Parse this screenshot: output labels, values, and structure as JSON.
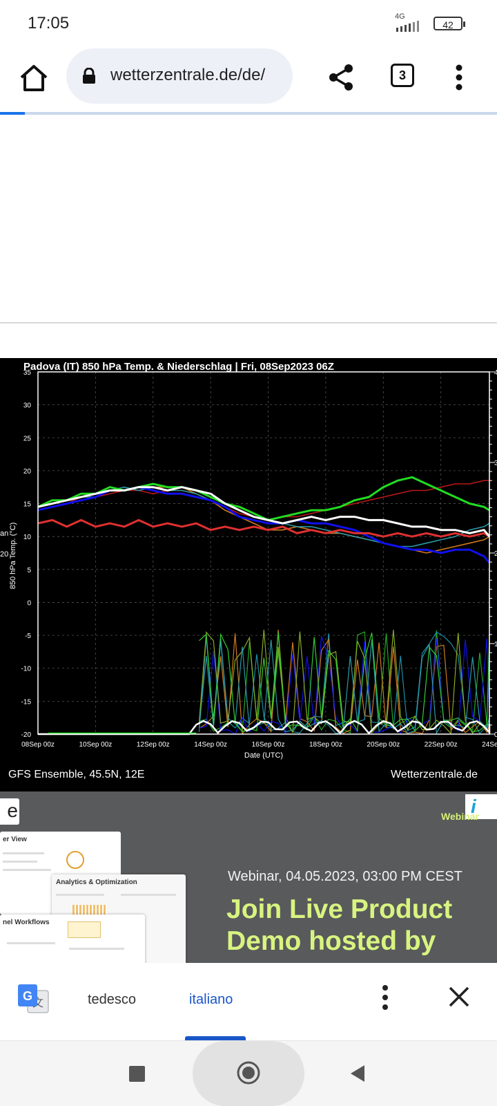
{
  "status_bar": {
    "time": "17:05",
    "network": "4G",
    "battery": "42"
  },
  "browser": {
    "url": "wetterzentrale.de/de/",
    "tab_count": "3",
    "load_progress": 0.05
  },
  "chart_panel": {
    "title": "Padova  (IT)  850 hPa Temp. & Niederschlag | Fri, 08Sep2023 06Z",
    "footer_left": "GFS Ensemble, 45.5N, 12E",
    "footer_right": "Wetterzentrale.de",
    "left_edge_fragments": [
      "an",
      "20"
    ],
    "right_axis_fragments": [
      "4",
      "3",
      "2",
      "1",
      "0"
    ]
  },
  "chart_data": {
    "type": "line",
    "title": "Padova  (IT)  850 hPa Temp. & Niederschlag | Fri, 08Sep2023 06Z",
    "xlabel": "Date (UTC)",
    "ylabel": "850 hPa Temp. (°C)",
    "ylim": [
      -20,
      35
    ],
    "yticks": [
      35,
      30,
      25,
      20,
      15,
      10,
      5,
      0,
      -5,
      -10,
      -15,
      -20
    ],
    "xticks": [
      "08Sep 00z",
      "10Sep 00z",
      "12Sep 00z",
      "14Sep 00z",
      "16Sep 00z",
      "18Sep 00z",
      "20Sep 00z",
      "22Sep 00z",
      "24Sep 00z"
    ],
    "x_days": [
      0,
      0.5,
      1,
      1.5,
      2,
      2.5,
      3,
      3.5,
      4,
      4.5,
      5,
      5.5,
      6,
      6.5,
      7,
      7.5,
      8,
      8.5,
      9,
      9.5,
      10,
      10.5,
      11,
      11.5,
      12,
      12.5,
      13,
      13.5,
      14,
      14.5,
      15,
      15.5,
      16
    ],
    "grid": true,
    "series": [
      {
        "color": "#e03030",
        "values": [
          12,
          12.5,
          11.5,
          12.5,
          11.5,
          12,
          11.5,
          12.5,
          11.5,
          12,
          11.5,
          12,
          11,
          11.5,
          11,
          11.5,
          11,
          11.5,
          10.5,
          11,
          10.5,
          11,
          10.5,
          10.5,
          10,
          10.5,
          10,
          10.5,
          10,
          10.5,
          10,
          10.5,
          10
        ]
      },
      {
        "color": "#ffffff",
        "values": [
          14.5,
          15,
          15.5,
          16,
          16.5,
          17,
          17,
          17.5,
          17.5,
          17,
          17.5,
          17,
          16.5,
          15,
          14,
          13,
          12.5,
          12,
          12.5,
          13,
          12.5,
          13,
          13,
          12.5,
          12.5,
          12,
          11.5,
          11.5,
          11,
          11,
          10.5,
          11,
          10
        ]
      },
      {
        "color": "#22dd22",
        "values": [
          14.5,
          15.5,
          15.5,
          16.5,
          16.5,
          17.5,
          17,
          17.5,
          18,
          17.5,
          17.5,
          17,
          16,
          15,
          14.5,
          13.5,
          12.5,
          13,
          13.5,
          14,
          14,
          14.5,
          15.5,
          16,
          17.5,
          18.5,
          19,
          18,
          17,
          16,
          15,
          14.5,
          14
        ]
      },
      {
        "color": "#1010ee",
        "values": [
          14,
          14.5,
          15,
          15.5,
          16,
          17,
          17,
          17.5,
          17,
          16.5,
          16.5,
          16,
          15.5,
          14.5,
          13,
          12.5,
          12,
          12,
          12.5,
          12,
          12,
          11.5,
          11,
          10,
          9,
          8.5,
          8,
          8,
          7.5,
          8,
          8,
          7,
          6
        ]
      },
      {
        "color": "#d07a20",
        "values": [
          14.5,
          15,
          15.5,
          16.5,
          16.5,
          17,
          17,
          17.5,
          17.5,
          17.5,
          17.5,
          16.5,
          15.5,
          14,
          13,
          12,
          11,
          11,
          11.5,
          11,
          10.5,
          10.5,
          10,
          9.5,
          9,
          8.5,
          8,
          7.5,
          8,
          8.5,
          9,
          9.5,
          10
        ]
      },
      {
        "color": "#b81818",
        "values": [
          14,
          14.5,
          15,
          16,
          16,
          16.5,
          17,
          17,
          16.5,
          17,
          17,
          16.5,
          15.5,
          14.5,
          13.5,
          13,
          12.5,
          13,
          13,
          13.5,
          14,
          14.5,
          15,
          15.5,
          16,
          16.5,
          17,
          17,
          17.5,
          18,
          18,
          18.5,
          18.5
        ]
      },
      {
        "color": "#2a9aa8",
        "values": [
          14.5,
          15,
          15.5,
          16,
          16,
          17,
          17.5,
          17,
          17.5,
          17,
          17,
          16.5,
          15.5,
          14.5,
          13,
          12.5,
          12,
          12,
          11.5,
          11.5,
          11,
          10.5,
          10,
          9.5,
          9,
          8.5,
          8.5,
          9,
          9.5,
          10,
          11,
          11.5,
          12
        ]
      }
    ]
  },
  "ad": {
    "tag_fragment": "e",
    "brand_fragment": "Webinar",
    "date": "Webinar, 04.05.2023, 03:00 PM CEST",
    "headline_line1": "Join Live Product",
    "headline_line2": "Demo hosted by",
    "mock_titles": [
      "er View",
      "Analytics & Optimization",
      "nel Workflows"
    ]
  },
  "translate_bar": {
    "source_language": "tedesco",
    "target_language": "italiano"
  }
}
